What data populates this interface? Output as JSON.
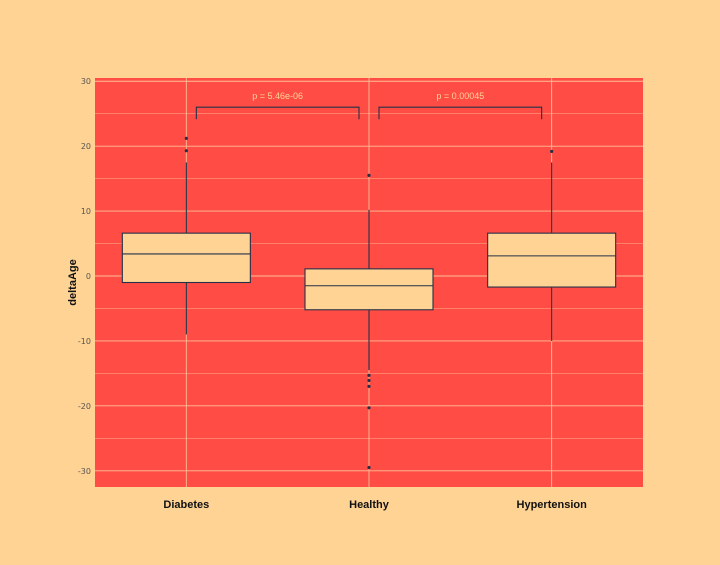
{
  "chart_data": {
    "type": "boxplot",
    "title": "",
    "xlabel": "",
    "ylabel": "deltaAge",
    "ylim": [
      -32.5,
      30.5
    ],
    "yticks": [
      30,
      20,
      10,
      0,
      -10,
      -20,
      -30
    ],
    "yticklabels": [
      "30",
      "20",
      "10",
      "0",
      "-10",
      "-20",
      "-30"
    ],
    "grid": true,
    "categories": [
      "Diabetes",
      "Healthy",
      "Hypertension"
    ],
    "boxes": [
      {
        "name": "Diabetes",
        "whisker_low": -9,
        "q1": -1,
        "median": 3.4,
        "q3": 6.6,
        "whisker_high": 17.5,
        "outliers": [
          19.3,
          21.2
        ]
      },
      {
        "name": "Healthy",
        "whisker_low": -14.5,
        "q1": -5.2,
        "median": -1.5,
        "q3": 1.1,
        "whisker_high": 10.2,
        "outliers": [
          15.5,
          -15.3,
          -16.1,
          -17,
          -20.3,
          -29.5
        ]
      },
      {
        "name": "Hypertension",
        "whisker_low": -10,
        "q1": -1.7,
        "median": 3.1,
        "q3": 6.6,
        "whisker_high": 17.5,
        "outliers": [
          19.2
        ]
      }
    ],
    "comparisons": [
      {
        "from": "Diabetes",
        "to": "Healthy",
        "label": "p = 5.46e-06",
        "y": 26
      },
      {
        "from": "Healthy",
        "to": "Hypertension",
        "label": "p = 0.00045",
        "y": 26
      }
    ],
    "colors": {
      "page_background": "#FFD394",
      "panel_background": "#FF4D45",
      "box_fill": "#FFD394",
      "box_stroke": "#253048",
      "grid": "#FFBE96"
    }
  }
}
